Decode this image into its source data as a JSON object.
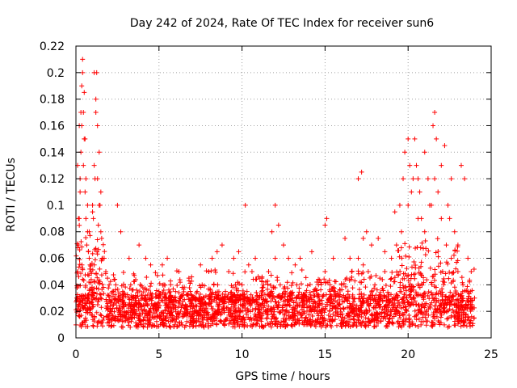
{
  "chart_data": {
    "type": "scatter",
    "title": "Day 242 of 2024, Rate Of TEC Index for receiver sun6",
    "xlabel": "GPS time / hours",
    "ylabel": "ROTI / TECUs",
    "xlim": [
      0,
      25
    ],
    "ylim": [
      0,
      0.22
    ],
    "xticks": [
      "0",
      "5",
      "10",
      "15",
      "20",
      "25"
    ],
    "yticks": [
      "0",
      "0.02",
      "0.04",
      "0.06",
      "0.08",
      "0.1",
      "0.12",
      "0.14",
      "0.16",
      "0.18",
      "0.2",
      "0.22"
    ],
    "grid": true,
    "marker": "plus",
    "color": "#ff0000",
    "series": [
      {
        "x": [
          0.05,
          0.1,
          0.15,
          0.2,
          0.25,
          0.3,
          0.35,
          0.4,
          0.45,
          0.5,
          0.55,
          0.6,
          0.7,
          0.8,
          0.9,
          1.0,
          1.1,
          1.2,
          1.3,
          1.4,
          1.5,
          1.6,
          1.8,
          2.0,
          2.2,
          2.4,
          2.6,
          2.8,
          3.0,
          3.3,
          3.6,
          4.0,
          4.3,
          4.6,
          5.0,
          5.3,
          5.6,
          6.0,
          6.3,
          6.6,
          7.0,
          7.3,
          7.6,
          8.0,
          8.3,
          8.6,
          9.0,
          9.3,
          9.6,
          10.0,
          10.3,
          10.6,
          11.0,
          11.3,
          11.6,
          12.0,
          12.3,
          12.6,
          13.0,
          13.3,
          13.6,
          14.0,
          14.3,
          14.6,
          15.0,
          15.3,
          15.6,
          16.0,
          16.3,
          16.6,
          17.0,
          17.3,
          17.6,
          18.0,
          18.3,
          18.6,
          19.0,
          19.3,
          19.6,
          20.0,
          20.3,
          20.6,
          21.0,
          21.3,
          21.6,
          22.0,
          22.3,
          22.6,
          23.0,
          23.3,
          23.6,
          24.0,
          0.1,
          0.2,
          0.3,
          0.35,
          0.4,
          0.5,
          0.55,
          0.6,
          0.7,
          0.8,
          1.0,
          1.1,
          1.2,
          1.25,
          1.3,
          1.4,
          1.5,
          0.15,
          0.25,
          0.45,
          0.65,
          0.75,
          0.85,
          1.05,
          1.15,
          1.35,
          1.45,
          1.55,
          1.7,
          1.9,
          2.5,
          2.7,
          3.2,
          3.8,
          4.2,
          4.5,
          5.2,
          5.5,
          6.2,
          6.8,
          7.5,
          8.2,
          8.5,
          8.8,
          9.2,
          9.5,
          9.8,
          10.2,
          10.4,
          10.8,
          11.2,
          11.8,
          12.0,
          12.2,
          12.5,
          12.8,
          13.2,
          13.5,
          14.2,
          15.0,
          15.1,
          15.5,
          16.2,
          16.5,
          17.0,
          17.2,
          17.3,
          17.5,
          17.8,
          18.2,
          18.6,
          19.2,
          19.5,
          19.7,
          19.8,
          20.0,
          20.1,
          20.2,
          20.4,
          20.5,
          20.6,
          20.7,
          20.8,
          21.0,
          21.2,
          21.4,
          21.5,
          21.6,
          21.7,
          21.8,
          22.0,
          22.2,
          22.4,
          22.5,
          22.6,
          22.8,
          23.0,
          23.2,
          23.4,
          23.6,
          23.8
        ],
        "y": [
          0.03,
          0.05,
          0.07,
          0.09,
          0.12,
          0.14,
          0.16,
          0.2,
          0.17,
          0.15,
          0.11,
          0.09,
          0.08,
          0.06,
          0.05,
          0.1,
          0.2,
          0.17,
          0.12,
          0.1,
          0.08,
          0.06,
          0.05,
          0.04,
          0.035,
          0.04,
          0.03,
          0.03,
          0.025,
          0.04,
          0.03,
          0.03,
          0.025,
          0.03,
          0.035,
          0.04,
          0.03,
          0.035,
          0.03,
          0.025,
          0.03,
          0.035,
          0.04,
          0.05,
          0.04,
          0.03,
          0.035,
          0.03,
          0.04,
          0.04,
          0.035,
          0.05,
          0.03,
          0.04,
          0.05,
          0.06,
          0.04,
          0.035,
          0.03,
          0.04,
          0.03,
          0.03,
          0.035,
          0.04,
          0.05,
          0.04,
          0.035,
          0.04,
          0.045,
          0.05,
          0.06,
          0.055,
          0.05,
          0.04,
          0.045,
          0.05,
          0.06,
          0.07,
          0.08,
          0.1,
          0.12,
          0.09,
          0.08,
          0.1,
          0.12,
          0.09,
          0.07,
          0.06,
          0.05,
          0.04,
          0.035,
          0.03,
          0.13,
          0.16,
          0.17,
          0.19,
          0.21,
          0.185,
          0.15,
          0.12,
          0.1,
          0.08,
          0.095,
          0.13,
          0.18,
          0.2,
          0.16,
          0.14,
          0.11,
          0.09,
          0.11,
          0.13,
          0.07,
          0.065,
          0.055,
          0.09,
          0.12,
          0.085,
          0.1,
          0.075,
          0.06,
          0.045,
          0.1,
          0.08,
          0.06,
          0.07,
          0.06,
          0.055,
          0.055,
          0.06,
          0.05,
          0.045,
          0.055,
          0.06,
          0.065,
          0.07,
          0.05,
          0.06,
          0.065,
          0.1,
          0.055,
          0.06,
          0.045,
          0.08,
          0.1,
          0.085,
          0.07,
          0.06,
          0.055,
          0.06,
          0.065,
          0.085,
          0.09,
          0.06,
          0.075,
          0.06,
          0.12,
          0.125,
          0.075,
          0.08,
          0.07,
          0.075,
          0.065,
          0.095,
          0.1,
          0.12,
          0.14,
          0.15,
          0.13,
          0.11,
          0.15,
          0.13,
          0.12,
          0.11,
          0.09,
          0.14,
          0.12,
          0.1,
          0.16,
          0.17,
          0.15,
          0.11,
          0.13,
          0.145,
          0.1,
          0.09,
          0.12,
          0.08,
          0.07,
          0.13,
          0.12,
          0.06,
          0.05
        ]
      }
    ]
  }
}
